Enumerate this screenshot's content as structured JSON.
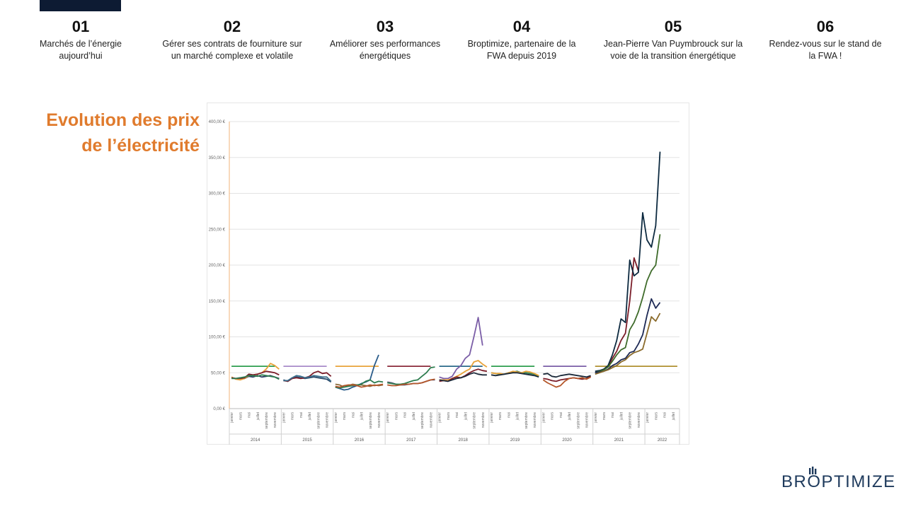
{
  "nav": {
    "items": [
      {
        "num": "01",
        "line1": "Marchés de l’énergie",
        "line2": "aujourd’hui"
      },
      {
        "num": "02",
        "line1": "Gérer ses contrats de fourniture sur",
        "line2": "un marché complexe et volatile"
      },
      {
        "num": "03",
        "line1": "Améliorer ses performances",
        "line2": "énergétiques"
      },
      {
        "num": "04",
        "line1": "Broptimize, partenaire de la",
        "line2": "FWA depuis 2019"
      },
      {
        "num": "05",
        "line1": "Jean-Pierre Van Puymbrouck sur la",
        "line2": "voie de la transition énergétique"
      },
      {
        "num": "06",
        "line1": "Rendez-vous sur le stand de",
        "line2": "la FWA !"
      }
    ]
  },
  "title": {
    "line1": "Evolution des prix",
    "line2": "de l’électricité"
  },
  "logo": {
    "left": "BR",
    "right": "PTIMIZE"
  },
  "colors": {
    "accent": "#e07b2d",
    "brand": "#1e3a5c",
    "dark": "#0d1b33"
  },
  "chart_data": {
    "type": "line",
    "ylim": [
      0,
      400
    ],
    "yticks": [
      "0,00 €",
      "50,00 €",
      "100,00 €",
      "150,00 €",
      "200,00 €",
      "250,00 €",
      "300,00 €",
      "350,00 €",
      "400,00 €"
    ],
    "month_labels": [
      "janvier",
      "mars",
      "mai",
      "juillet",
      "septembre",
      "novembre"
    ],
    "years": [
      "2014",
      "2015",
      "2016",
      "2017",
      "2018",
      "2019",
      "2020",
      "2021",
      "2022"
    ],
    "x_months": "monthly from janvier 2014 to juillet 2022 (104 points)",
    "series": [
      {
        "color": "#2c3e64",
        "start": 0,
        "values": [
          43,
          42,
          43,
          42,
          45,
          44,
          46,
          44,
          45,
          46,
          44,
          42
        ]
      },
      {
        "color": "#e8a33a",
        "start": 0,
        "values": [
          44,
          41,
          40,
          42,
          46,
          47,
          48,
          50,
          55,
          63,
          60,
          55
        ]
      },
      {
        "color": "#7b1e2a",
        "start": 0,
        "values": [
          43,
          42,
          42,
          43,
          48,
          47,
          48,
          50,
          52,
          51,
          50,
          47
        ]
      },
      {
        "color": "#2e7d4f",
        "start": 0,
        "values": [
          42,
          42,
          43,
          44,
          46,
          46,
          45,
          47,
          46,
          45,
          44,
          41
        ]
      },
      {
        "color": "#2a4a6b",
        "start": 12,
        "values": [
          40,
          38,
          42,
          44,
          43,
          42,
          43,
          44,
          43,
          42,
          41,
          37
        ]
      },
      {
        "color": "#7b1e2a",
        "start": 12,
        "values": [
          39,
          38,
          42,
          43,
          42,
          43,
          45,
          50,
          52,
          49,
          50,
          45
        ]
      },
      {
        "color": "#3b6e8c",
        "start": 12,
        "values": [
          39,
          39,
          43,
          46,
          45,
          43,
          44,
          46,
          45,
          44,
          44,
          38
        ]
      },
      {
        "color": "#8a6a3a",
        "start": 24,
        "values": [
          34,
          33,
          30,
          32,
          34,
          33,
          33,
          32,
          31,
          33,
          32,
          33
        ]
      },
      {
        "color": "#2a5c8a",
        "start": 24,
        "values": [
          30,
          28,
          26,
          27,
          30,
          32,
          35,
          37,
          40,
          60,
          75
        ]
      },
      {
        "color": "#2e7d4f",
        "start": 24,
        "values": [
          30,
          29,
          30,
          31,
          32,
          33,
          34,
          38,
          40,
          36,
          38,
          37
        ]
      },
      {
        "color": "#b4562a",
        "start": 24,
        "values": [
          31,
          30,
          32,
          33,
          33,
          32,
          30,
          31,
          33,
          32,
          33,
          34
        ]
      },
      {
        "color": "#5a5a7a",
        "start": 36,
        "values": [
          37,
          36,
          34,
          33,
          33,
          34,
          35,
          35,
          36,
          38,
          40,
          40
        ]
      },
      {
        "color": "#2e7d4f",
        "start": 36,
        "values": [
          36,
          35,
          34,
          34,
          35,
          37,
          39,
          40,
          45,
          50,
          57,
          58
        ]
      },
      {
        "color": "#b4562a",
        "start": 36,
        "values": [
          33,
          32,
          32,
          33,
          34,
          34,
          35,
          35,
          36,
          38,
          40,
          41
        ]
      },
      {
        "color": "#7b5ea7",
        "start": 48,
        "values": [
          44,
          42,
          42,
          45,
          55,
          60,
          70,
          75,
          100,
          127,
          88
        ]
      },
      {
        "color": "#e8a33a",
        "start": 48,
        "values": [
          40,
          40,
          40,
          42,
          45,
          48,
          52,
          55,
          65,
          67,
          62,
          58
        ]
      },
      {
        "color": "#7b1e2a",
        "start": 48,
        "values": [
          38,
          39,
          38,
          42,
          44,
          43,
          46,
          50,
          53,
          55,
          53,
          52
        ]
      },
      {
        "color": "#1c2a3a",
        "start": 48,
        "values": [
          40,
          39,
          38,
          40,
          42,
          43,
          45,
          48,
          50,
          48,
          47,
          47
        ]
      },
      {
        "color": "#2e7d4f",
        "start": 60,
        "values": [
          50,
          49,
          48,
          48,
          50,
          51,
          52,
          50,
          50,
          49,
          48,
          45
        ]
      },
      {
        "color": "#e8a33a",
        "start": 60,
        "values": [
          50,
          49,
          49,
          48,
          50,
          52,
          51,
          50,
          52,
          51,
          49,
          46
        ]
      },
      {
        "color": "#1c2a3a",
        "start": 60,
        "values": [
          47,
          46,
          47,
          48,
          49,
          50,
          50,
          49,
          48,
          47,
          46,
          44
        ]
      },
      {
        "color": "#7b1e2a",
        "start": 72,
        "values": [
          42,
          41,
          39,
          38,
          40,
          41,
          42,
          43,
          42,
          41,
          42,
          45
        ]
      },
      {
        "color": "#1c2a3a",
        "start": 72,
        "values": [
          48,
          49,
          45,
          44,
          46,
          47,
          48,
          47,
          46,
          45,
          44,
          46
        ]
      },
      {
        "color": "#b4562a",
        "start": 72,
        "values": [
          40,
          36,
          33,
          30,
          32,
          38,
          42,
          43,
          42,
          43,
          41,
          44
        ]
      },
      {
        "color": "#7b1e2a",
        "start": 84,
        "values": [
          50,
          52,
          55,
          58,
          70,
          80,
          95,
          105,
          150,
          210,
          192
        ]
      },
      {
        "color": "#0d2a40",
        "start": 84,
        "values": [
          52,
          53,
          55,
          60,
          75,
          95,
          125,
          120,
          207,
          185,
          190,
          273,
          235,
          225,
          255,
          358
        ]
      },
      {
        "color": "#3e6b2a",
        "start": 84,
        "values": [
          50,
          52,
          54,
          58,
          66,
          75,
          82,
          85,
          110,
          120,
          135,
          155,
          178,
          192,
          200,
          243
        ]
      },
      {
        "color": "#1e2a55",
        "start": 84,
        "values": [
          50,
          51,
          52,
          55,
          60,
          63,
          68,
          70,
          78,
          80,
          90,
          103,
          130,
          153,
          140,
          148
        ]
      },
      {
        "color": "#8a6a2a",
        "start": 84,
        "values": [
          48,
          50,
          52,
          54,
          57,
          60,
          65,
          68,
          74,
          78,
          80,
          83,
          105,
          128,
          122,
          133
        ]
      }
    ],
    "flat_segments": [
      {
        "color": "#2e9e4f",
        "from": 0,
        "to": 10,
        "value": 59
      },
      {
        "color": "#a88bc9",
        "from": 12,
        "to": 22,
        "value": 59
      },
      {
        "color": "#e8a33a",
        "from": 24,
        "to": 34,
        "value": 59
      },
      {
        "color": "#8b2a3a",
        "from": 36,
        "to": 46,
        "value": 59
      },
      {
        "color": "#2a6a8a",
        "from": 48,
        "to": 58,
        "value": 59
      },
      {
        "color": "#2e9e4f",
        "from": 60,
        "to": 70,
        "value": 59
      },
      {
        "color": "#7b5ea7",
        "from": 72,
        "to": 82,
        "value": 59
      },
      {
        "color": "#b09030",
        "from": 84,
        "to": 103,
        "value": 59
      }
    ]
  }
}
